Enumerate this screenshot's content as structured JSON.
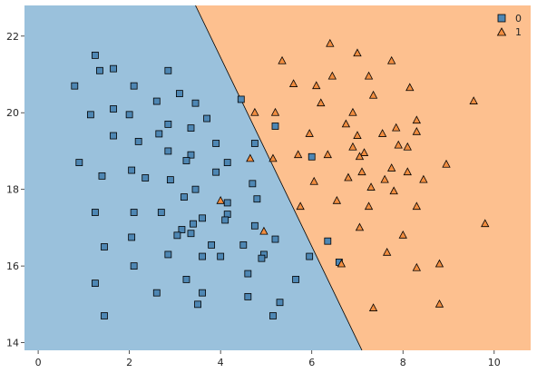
{
  "chart_data": {
    "type": "scatter",
    "title": "",
    "xlabel": "",
    "ylabel": "",
    "xlim": [
      -0.3,
      10.8
    ],
    "ylim": [
      13.8,
      22.8
    ],
    "x_ticks": [
      0,
      2,
      4,
      6,
      8,
      10
    ],
    "y_ticks": [
      14,
      16,
      18,
      20,
      22
    ],
    "decision_boundary": [
      [
        3.45,
        22.8
      ],
      [
        7.1,
        13.8
      ]
    ],
    "regions": [
      {
        "class": "0",
        "color": "#9ac1dc"
      },
      {
        "class": "1",
        "color": "#fdc08f"
      }
    ],
    "legend": {
      "position": "top-right",
      "entries": [
        "0",
        "1"
      ]
    },
    "series": [
      {
        "name": "0",
        "marker": "square",
        "color": "#4e87b4",
        "points": [
          [
            1.25,
            21.5
          ],
          [
            1.65,
            21.15
          ],
          [
            2.85,
            21.1
          ],
          [
            1.35,
            21.1
          ],
          [
            0.8,
            20.7
          ],
          [
            2.1,
            20.7
          ],
          [
            3.1,
            20.5
          ],
          [
            4.45,
            20.35
          ],
          [
            2.6,
            20.3
          ],
          [
            3.45,
            20.25
          ],
          [
            1.65,
            20.1
          ],
          [
            1.15,
            19.95
          ],
          [
            2.0,
            19.95
          ],
          [
            3.7,
            19.85
          ],
          [
            2.85,
            19.7
          ],
          [
            5.2,
            19.65
          ],
          [
            3.35,
            19.6
          ],
          [
            2.65,
            19.45
          ],
          [
            1.65,
            19.4
          ],
          [
            2.2,
            19.25
          ],
          [
            4.75,
            19.2
          ],
          [
            3.9,
            19.2
          ],
          [
            2.85,
            19.0
          ],
          [
            3.35,
            18.9
          ],
          [
            6.0,
            18.85
          ],
          [
            3.25,
            18.75
          ],
          [
            4.15,
            18.7
          ],
          [
            0.9,
            18.7
          ],
          [
            2.05,
            18.5
          ],
          [
            3.9,
            18.45
          ],
          [
            1.4,
            18.35
          ],
          [
            2.35,
            18.3
          ],
          [
            2.9,
            18.25
          ],
          [
            4.7,
            18.15
          ],
          [
            3.45,
            18.0
          ],
          [
            3.2,
            17.8
          ],
          [
            4.8,
            17.75
          ],
          [
            4.15,
            17.65
          ],
          [
            1.25,
            17.4
          ],
          [
            2.1,
            17.4
          ],
          [
            2.7,
            17.4
          ],
          [
            4.15,
            17.35
          ],
          [
            3.6,
            17.25
          ],
          [
            4.1,
            17.2
          ],
          [
            3.4,
            17.1
          ],
          [
            4.75,
            17.05
          ],
          [
            3.15,
            16.95
          ],
          [
            3.35,
            16.85
          ],
          [
            3.05,
            16.8
          ],
          [
            2.05,
            16.75
          ],
          [
            5.2,
            16.7
          ],
          [
            6.35,
            16.65
          ],
          [
            3.8,
            16.55
          ],
          [
            4.5,
            16.55
          ],
          [
            1.45,
            16.5
          ],
          [
            4.95,
            16.3
          ],
          [
            2.85,
            16.3
          ],
          [
            3.6,
            16.25
          ],
          [
            4.0,
            16.25
          ],
          [
            5.95,
            16.25
          ],
          [
            4.9,
            16.2
          ],
          [
            6.6,
            16.1
          ],
          [
            2.1,
            16.0
          ],
          [
            4.6,
            15.8
          ],
          [
            5.65,
            15.65
          ],
          [
            3.25,
            15.65
          ],
          [
            1.25,
            15.55
          ],
          [
            3.6,
            15.3
          ],
          [
            2.6,
            15.3
          ],
          [
            4.6,
            15.2
          ],
          [
            5.3,
            15.05
          ],
          [
            3.5,
            15.0
          ],
          [
            5.15,
            14.7
          ],
          [
            1.45,
            14.7
          ]
        ]
      },
      {
        "name": "1",
        "marker": "triangle",
        "color": "#f28d3f",
        "points": [
          [
            6.4,
            21.8
          ],
          [
            7.0,
            21.55
          ],
          [
            7.75,
            21.35
          ],
          [
            5.35,
            21.35
          ],
          [
            6.45,
            20.95
          ],
          [
            7.25,
            20.95
          ],
          [
            5.6,
            20.75
          ],
          [
            6.1,
            20.7
          ],
          [
            8.15,
            20.65
          ],
          [
            7.35,
            20.45
          ],
          [
            6.2,
            20.25
          ],
          [
            9.55,
            20.3
          ],
          [
            4.75,
            20.0
          ],
          [
            5.2,
            20.0
          ],
          [
            6.9,
            20.0
          ],
          [
            8.3,
            19.8
          ],
          [
            6.75,
            19.7
          ],
          [
            7.85,
            19.6
          ],
          [
            8.3,
            19.5
          ],
          [
            7.55,
            19.45
          ],
          [
            7.0,
            19.4
          ],
          [
            5.95,
            19.45
          ],
          [
            7.9,
            19.15
          ],
          [
            6.9,
            19.1
          ],
          [
            8.1,
            19.1
          ],
          [
            7.15,
            18.95
          ],
          [
            5.7,
            18.9
          ],
          [
            6.35,
            18.9
          ],
          [
            5.15,
            18.8
          ],
          [
            4.65,
            18.8
          ],
          [
            7.05,
            18.85
          ],
          [
            8.95,
            18.65
          ],
          [
            7.75,
            18.55
          ],
          [
            7.1,
            18.45
          ],
          [
            8.1,
            18.45
          ],
          [
            6.05,
            18.2
          ],
          [
            6.8,
            18.3
          ],
          [
            7.6,
            18.25
          ],
          [
            8.45,
            18.25
          ],
          [
            7.3,
            18.05
          ],
          [
            7.8,
            17.95
          ],
          [
            6.55,
            17.7
          ],
          [
            4.0,
            17.7
          ],
          [
            5.75,
            17.55
          ],
          [
            7.25,
            17.55
          ],
          [
            8.3,
            17.55
          ],
          [
            9.8,
            17.1
          ],
          [
            7.05,
            17.0
          ],
          [
            4.95,
            16.9
          ],
          [
            8.0,
            16.8
          ],
          [
            7.65,
            16.35
          ],
          [
            6.65,
            16.05
          ],
          [
            8.8,
            16.05
          ],
          [
            8.3,
            15.95
          ],
          [
            8.8,
            15.0
          ],
          [
            7.35,
            14.9
          ]
        ]
      }
    ]
  }
}
